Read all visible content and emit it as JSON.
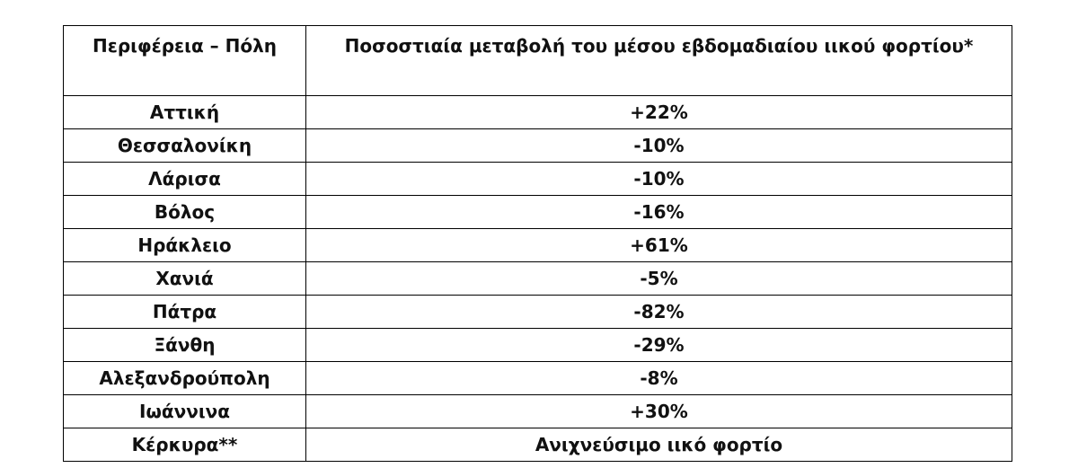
{
  "table": {
    "header": [
      "Περιφέρεια – Πόλη",
      "Ποσοστιαία μεταβολή του μέσου εβδομαδιαίου ιικού φορτίου*"
    ],
    "rows": [
      [
        "Αττική",
        "+22%"
      ],
      [
        "Θεσσαλονίκη",
        "-10%"
      ],
      [
        "Λάρισα",
        "-10%"
      ],
      [
        "Βόλος",
        "-16%"
      ],
      [
        "Ηράκλειο",
        "+61%"
      ],
      [
        "Χανιά",
        "-5%"
      ],
      [
        "Πάτρα",
        "-82%"
      ],
      [
        "Ξάνθη",
        "-29%"
      ],
      [
        "Αλεξανδρούπολη",
        "-8%"
      ],
      [
        "Ιωάννινα",
        "+30%"
      ],
      [
        "Κέρκυρα**",
        "Ανιχνεύσιμο ιικό φορτίο"
      ]
    ]
  }
}
